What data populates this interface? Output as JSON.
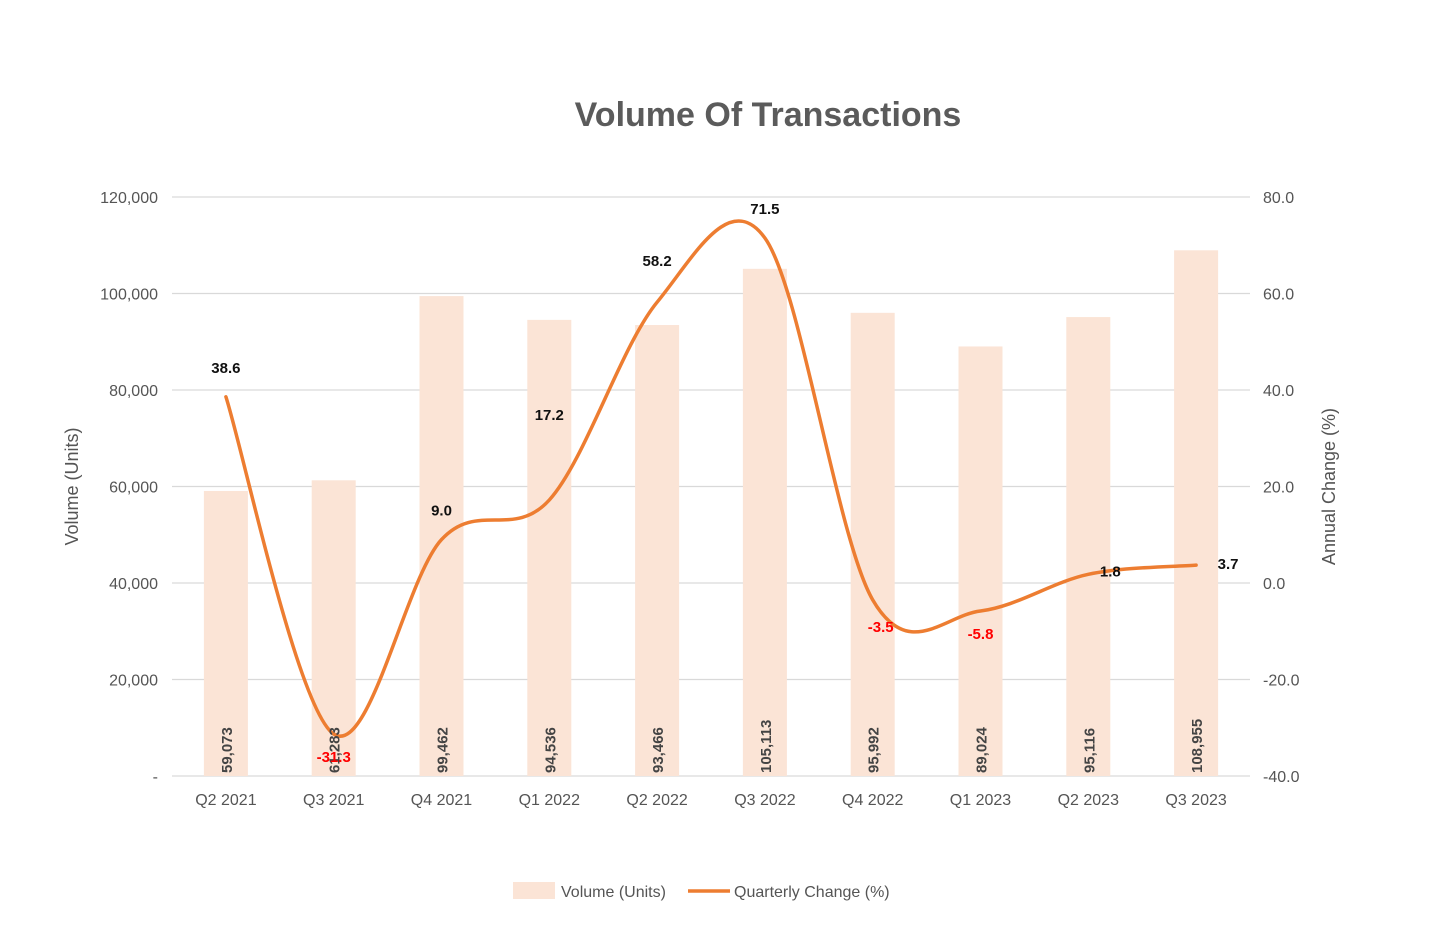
{
  "chart_data": {
    "type": "bar",
    "title": "Volume Of Transactions",
    "categories": [
      "Q2 2021",
      "Q3 2021",
      "Q4 2021",
      "Q1 2022",
      "Q2 2022",
      "Q3 2022",
      "Q4 2022",
      "Q1 2023",
      "Q2 2023",
      "Q3 2023"
    ],
    "series": [
      {
        "name": "Volume (Units)",
        "type": "bar",
        "axis": "left",
        "color": "#fbe4d6",
        "values": [
          59073,
          61283,
          99462,
          94536,
          93466,
          105113,
          95992,
          89024,
          95116,
          108955
        ],
        "labels": [
          "59,073",
          "61,283",
          "99,462",
          "94,536",
          "93,466",
          "105,113",
          "95,992",
          "89,024",
          "95,116",
          "108,955"
        ]
      },
      {
        "name": "Quarterly Change (%)",
        "type": "line",
        "smooth": true,
        "axis": "right",
        "color": "#ed7d31",
        "values": [
          38.6,
          -31.3,
          9.0,
          17.2,
          58.2,
          71.5,
          -3.5,
          -5.8,
          1.8,
          3.7
        ],
        "labels": [
          "38.6",
          "-31.3",
          "9.0",
          "17.2",
          "58.2",
          "71.5",
          "-3.5",
          "-5.8",
          "1.8",
          "3.7"
        ],
        "negative_label_color": "#ff0000",
        "positive_label_color": "#111111"
      }
    ],
    "ylabel_left": "Volume (Units)",
    "ylabel_right": "Annual Change (%)",
    "ylim_left": [
      0,
      120000
    ],
    "ylim_right": [
      -40,
      80
    ],
    "yticks_left": [
      "-",
      "20,000",
      "40,000",
      "60,000",
      "80,000",
      "100,000",
      "120,000"
    ],
    "yticks_right": [
      "-40.0",
      "-20.0",
      "0.0",
      "20.0",
      "40.0",
      "60.0",
      "80.0"
    ],
    "grid": true,
    "legend_position": "bottom"
  }
}
